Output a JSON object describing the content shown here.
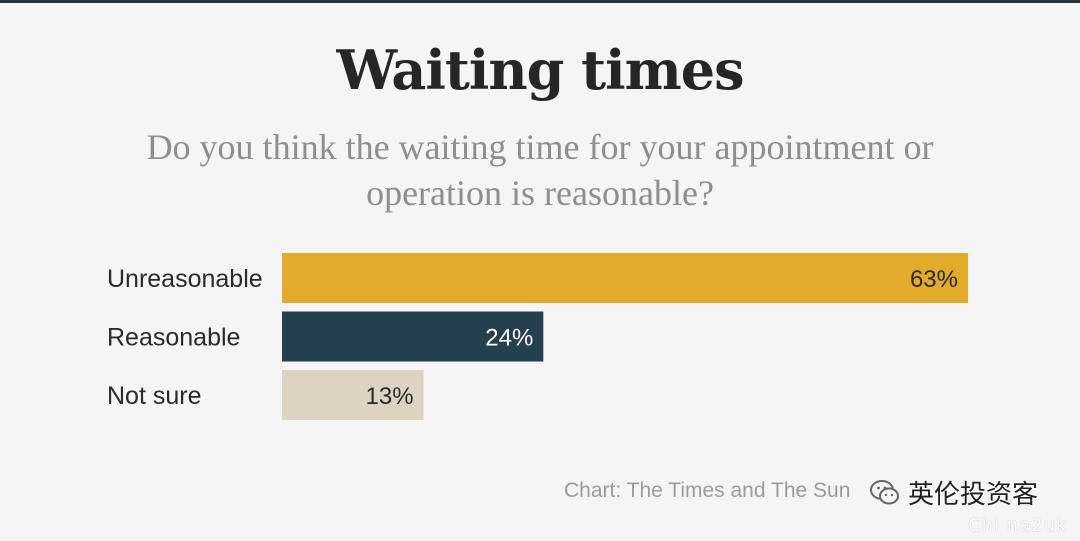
{
  "chart_data": {
    "type": "bar",
    "orientation": "horizontal",
    "title": "Waiting times",
    "subtitle": "Do you think the waiting time for your appointment or operation is reasonable?",
    "categories": [
      "Unreasonable",
      "Reasonable",
      "Not sure"
    ],
    "values": [
      63,
      24,
      13
    ],
    "value_labels": [
      "63%",
      "24%",
      "13%"
    ],
    "colors": [
      "#e2ab2a",
      "#24404f",
      "#dcd3c1"
    ],
    "value_label_colors": [
      "#2a2a2a",
      "#ffffff",
      "#2a2a2a"
    ],
    "xlim": [
      0,
      63
    ],
    "grid": false,
    "source": "Chart: The Times and The Sun"
  },
  "watermark": {
    "icon": "wechat-icon",
    "text": "英伦投资客",
    "handle": "Chi na2uk"
  }
}
